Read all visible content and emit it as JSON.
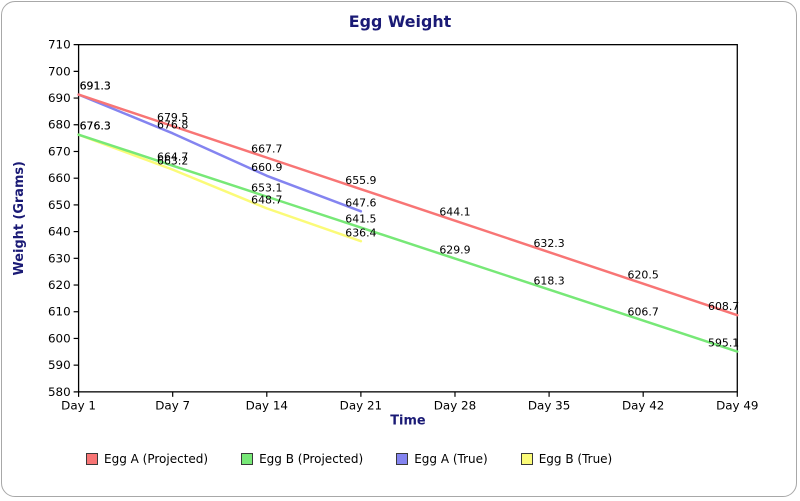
{
  "chart_data": {
    "type": "line",
    "title": "Egg Weight",
    "xlabel": "Time",
    "ylabel": "Weight (Grams)",
    "categories": [
      "Day 1",
      "Day 7",
      "Day 14",
      "Day 21",
      "Day 28",
      "Day 35",
      "Day 42",
      "Day 49"
    ],
    "ylim": [
      580,
      710
    ],
    "yticks": [
      580,
      590,
      600,
      610,
      620,
      630,
      640,
      650,
      660,
      670,
      680,
      690,
      700,
      710
    ],
    "grid": false,
    "point_labels_decimals": 1,
    "legend_position": "bottom",
    "series": [
      {
        "name": "Egg A (Projected)",
        "color": "#f87575",
        "values": [
          691.3,
          679.5,
          667.7,
          655.9,
          644.1,
          632.3,
          620.5,
          608.7
        ]
      },
      {
        "name": "Egg B (Projected)",
        "color": "#77e877",
        "values": [
          676.3,
          664.7,
          653.1,
          641.5,
          629.9,
          618.3,
          606.7,
          595.1
        ]
      },
      {
        "name": "Egg A (True)",
        "color": "#8484f0",
        "values": [
          691.3,
          676.8,
          660.9,
          647.6
        ]
      },
      {
        "name": "Egg B (True)",
        "color": "#fbfb78",
        "values": [
          676.3,
          663.2,
          648.7,
          636.4
        ]
      }
    ],
    "colors": {
      "title": "#1a1a75",
      "axis_title": "#1a1a75",
      "tick_label": "#000000",
      "point_label": "#000000",
      "plot_border": "#000000",
      "frame_border": "#a8a8a8"
    }
  }
}
